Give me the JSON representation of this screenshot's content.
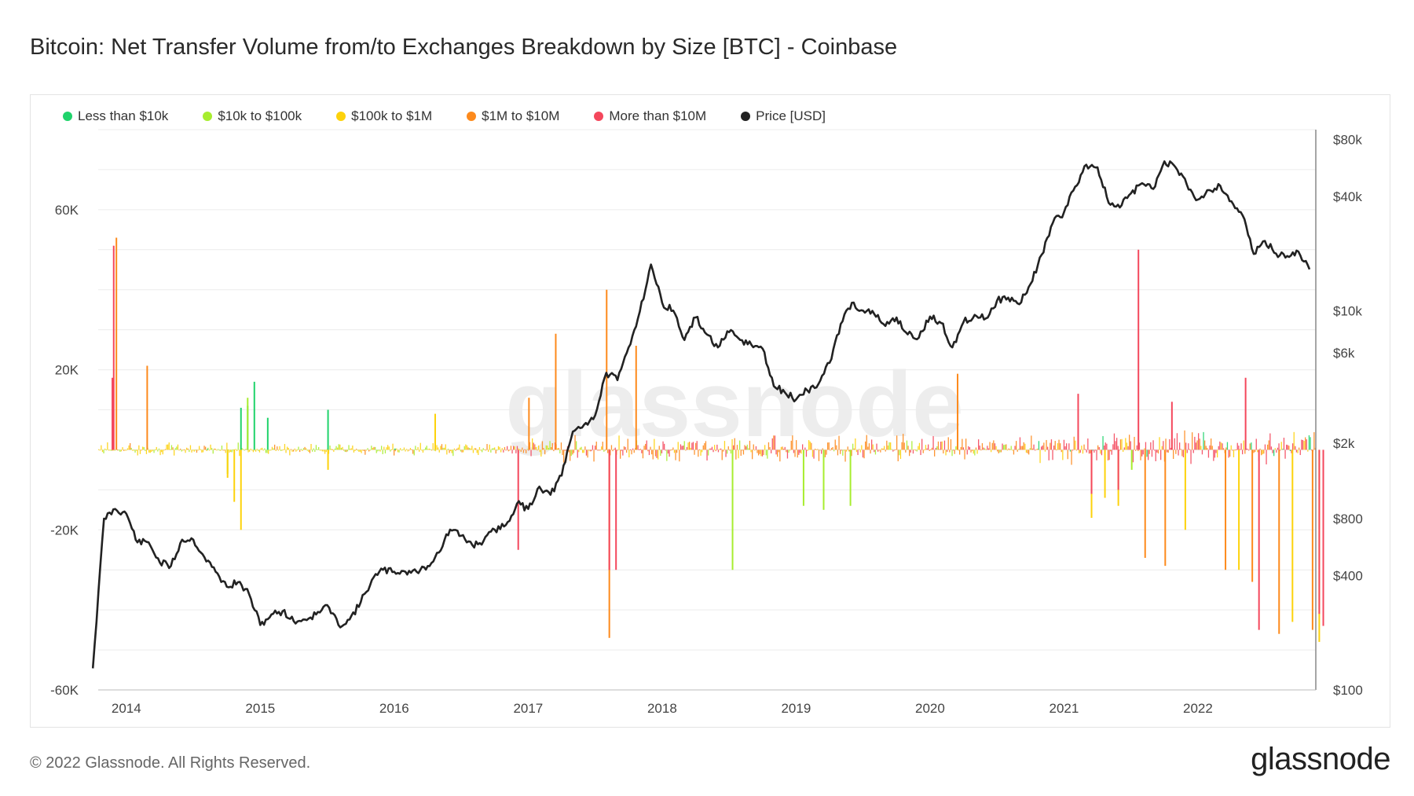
{
  "page": {
    "title": "Bitcoin: Net Transfer Volume from/to Exchanges Breakdown by Size [BTC] - Coinbase",
    "footer": "© 2022 Glassnode. All Rights Reserved.",
    "brand": "glassnode",
    "watermark": "glassnode"
  },
  "chart_data": {
    "type": "bar",
    "title": "Bitcoin: Net Transfer Volume from/to Exchanges Breakdown by Size [BTC] - Coinbase",
    "xlabel": "",
    "ylabel": "",
    "grid": true,
    "legend_position": "top-left",
    "x_range": [
      "2013-10",
      "2022-11"
    ],
    "x_ticks": [
      "2014",
      "2015",
      "2016",
      "2017",
      "2018",
      "2019",
      "2020",
      "2021",
      "2022"
    ],
    "y_left": {
      "range": [
        -60000,
        80000
      ],
      "ticks": [
        {
          "value": 60000,
          "label": "60K"
        },
        {
          "value": 20000,
          "label": "20K"
        },
        {
          "value": -20000,
          "label": "-20K"
        },
        {
          "value": -60000,
          "label": "-60K"
        }
      ]
    },
    "y_right": {
      "scale": "log",
      "range": [
        100,
        90000
      ],
      "ticks": [
        {
          "value": 80000,
          "label": "$80k"
        },
        {
          "value": 40000,
          "label": "$40k"
        },
        {
          "value": 10000,
          "label": "$10k"
        },
        {
          "value": 6000,
          "label": "$6k"
        },
        {
          "value": 2000,
          "label": "$2k"
        },
        {
          "value": 800,
          "label": "$800"
        },
        {
          "value": 400,
          "label": "$400"
        },
        {
          "value": 100,
          "label": "$100"
        }
      ]
    },
    "series": [
      {
        "name": "Less than $10k",
        "color": "#1fd36b",
        "values": [
          [
            2014.95,
            17000
          ],
          [
            2014.85,
            10500
          ],
          [
            2014.9,
            11000
          ],
          [
            2015.05,
            8000
          ],
          [
            2015.5,
            10000
          ],
          [
            2014.6,
            200
          ],
          [
            2016.0,
            300
          ]
        ]
      },
      {
        "name": "$10k to $100k",
        "color": "#a7ed2f",
        "values": [
          [
            2014.9,
            13000
          ],
          [
            2018.52,
            -30000
          ],
          [
            2019.05,
            -14000
          ],
          [
            2014.75,
            -6000
          ],
          [
            2019.2,
            -15000
          ],
          [
            2019.4,
            -14000
          ],
          [
            2021.5,
            -5000
          ]
        ]
      },
      {
        "name": "$100k to $1M",
        "color": "#fdd20b",
        "values": [
          [
            2014.85,
            -20000
          ],
          [
            2014.8,
            -13000
          ],
          [
            2014.75,
            -7000
          ],
          [
            2015.5,
            -5000
          ],
          [
            2016.3,
            9000
          ],
          [
            2021.2,
            -17000
          ],
          [
            2021.4,
            -14000
          ],
          [
            2021.9,
            -20000
          ],
          [
            2022.7,
            -43000
          ],
          [
            2022.9,
            -48000
          ],
          [
            2022.3,
            -30000
          ],
          [
            2021.3,
            -12000
          ]
        ]
      },
      {
        "name": "$1M to $10M",
        "color": "#fd8a1c",
        "values": [
          [
            2013.92,
            53000
          ],
          [
            2014.15,
            21000
          ],
          [
            2017.2,
            29000
          ],
          [
            2017.58,
            40000
          ],
          [
            2017.6,
            -47000
          ],
          [
            2017.0,
            13000
          ],
          [
            2017.8,
            26000
          ],
          [
            2020.2,
            19000
          ],
          [
            2021.6,
            -27000
          ],
          [
            2021.75,
            -29000
          ],
          [
            2022.2,
            -30000
          ],
          [
            2022.4,
            -33000
          ],
          [
            2022.6,
            -46000
          ],
          [
            2022.85,
            -45000
          ]
        ]
      },
      {
        "name": "More than $10M",
        "color": "#f4475c",
        "values": [
          [
            2013.9,
            51000
          ],
          [
            2013.89,
            18000
          ],
          [
            2016.92,
            -25000
          ],
          [
            2017.6,
            -30000
          ],
          [
            2017.65,
            -30000
          ],
          [
            2021.55,
            50000
          ],
          [
            2021.2,
            -11000
          ],
          [
            2021.4,
            -10000
          ],
          [
            2022.35,
            18000
          ],
          [
            2022.45,
            -45000
          ],
          [
            2022.9,
            -41000
          ],
          [
            2022.93,
            -44000
          ],
          [
            2021.1,
            14000
          ],
          [
            2021.8,
            12000
          ]
        ]
      }
    ],
    "price": {
      "name": "Price [USD]",
      "color": "#222222",
      "points": [
        [
          "2013-10",
          130
        ],
        [
          "2013-11",
          800
        ],
        [
          "2013-12",
          900
        ],
        [
          "2014-01",
          850
        ],
        [
          "2014-02",
          600
        ],
        [
          "2014-03",
          600
        ],
        [
          "2014-04",
          470
        ],
        [
          "2014-05",
          450
        ],
        [
          "2014-06",
          620
        ],
        [
          "2014-07",
          620
        ],
        [
          "2014-08",
          500
        ],
        [
          "2014-09",
          420
        ],
        [
          "2014-10",
          350
        ],
        [
          "2014-11",
          370
        ],
        [
          "2014-12",
          320
        ],
        [
          "2015-01",
          220
        ],
        [
          "2015-02",
          250
        ],
        [
          "2015-03",
          260
        ],
        [
          "2015-04",
          230
        ],
        [
          "2015-05",
          235
        ],
        [
          "2015-06",
          250
        ],
        [
          "2015-07",
          280
        ],
        [
          "2015-08",
          220
        ],
        [
          "2015-09",
          235
        ],
        [
          "2015-10",
          290
        ],
        [
          "2015-11",
          380
        ],
        [
          "2015-12",
          430
        ],
        [
          "2016-01",
          420
        ],
        [
          "2016-02",
          420
        ],
        [
          "2016-03",
          420
        ],
        [
          "2016-04",
          450
        ],
        [
          "2016-05",
          530
        ],
        [
          "2016-06",
          700
        ],
        [
          "2016-07",
          650
        ],
        [
          "2016-08",
          580
        ],
        [
          "2016-09",
          610
        ],
        [
          "2016-10",
          700
        ],
        [
          "2016-11",
          740
        ],
        [
          "2016-12",
          960
        ],
        [
          "2017-01",
          900
        ],
        [
          "2017-02",
          1180
        ],
        [
          "2017-03",
          1070
        ],
        [
          "2017-04",
          1350
        ],
        [
          "2017-05",
          2300
        ],
        [
          "2017-06",
          2500
        ],
        [
          "2017-07",
          2800
        ],
        [
          "2017-08",
          4700
        ],
        [
          "2017-09",
          4300
        ],
        [
          "2017-10",
          6400
        ],
        [
          "2017-11",
          9900
        ],
        [
          "2017-12",
          17500
        ],
        [
          "2018-01",
          11000
        ],
        [
          "2018-02",
          10000
        ],
        [
          "2018-03",
          7000
        ],
        [
          "2018-04",
          9200
        ],
        [
          "2018-05",
          7500
        ],
        [
          "2018-06",
          6400
        ],
        [
          "2018-07",
          7700
        ],
        [
          "2018-08",
          7000
        ],
        [
          "2018-09",
          6600
        ],
        [
          "2018-10",
          6300
        ],
        [
          "2018-11",
          4000
        ],
        [
          "2018-12",
          3700
        ],
        [
          "2019-01",
          3400
        ],
        [
          "2019-02",
          3800
        ],
        [
          "2019-03",
          4100
        ],
        [
          "2019-04",
          5300
        ],
        [
          "2019-05",
          8500
        ],
        [
          "2019-06",
          11000
        ],
        [
          "2019-07",
          10000
        ],
        [
          "2019-08",
          9600
        ],
        [
          "2019-09",
          8300
        ],
        [
          "2019-10",
          9200
        ],
        [
          "2019-11",
          7500
        ],
        [
          "2019-12",
          7200
        ],
        [
          "2020-01",
          9300
        ],
        [
          "2020-02",
          8600
        ],
        [
          "2020-03",
          6400
        ],
        [
          "2020-04",
          8700
        ],
        [
          "2020-05",
          9500
        ],
        [
          "2020-06",
          9100
        ],
        [
          "2020-07",
          11300
        ],
        [
          "2020-08",
          11700
        ],
        [
          "2020-09",
          10800
        ],
        [
          "2020-10",
          13800
        ],
        [
          "2020-11",
          19700
        ],
        [
          "2020-12",
          29000
        ],
        [
          "2021-01",
          33000
        ],
        [
          "2021-02",
          45000
        ],
        [
          "2021-03",
          58800
        ],
        [
          "2021-04",
          57000
        ],
        [
          "2021-05",
          37000
        ],
        [
          "2021-06",
          35000
        ],
        [
          "2021-07",
          41500
        ],
        [
          "2021-08",
          47000
        ],
        [
          "2021-09",
          43800
        ],
        [
          "2021-10",
          61300
        ],
        [
          "2021-11",
          57000
        ],
        [
          "2021-12",
          46300
        ],
        [
          "2022-01",
          38500
        ],
        [
          "2022-02",
          43200
        ],
        [
          "2022-03",
          45500
        ],
        [
          "2022-04",
          37700
        ],
        [
          "2022-05",
          31800
        ],
        [
          "2022-06",
          19900
        ],
        [
          "2022-07",
          23300
        ],
        [
          "2022-08",
          20000
        ],
        [
          "2022-09",
          19400
        ],
        [
          "2022-10",
          20500
        ],
        [
          "2022-11",
          16500
        ]
      ]
    }
  }
}
